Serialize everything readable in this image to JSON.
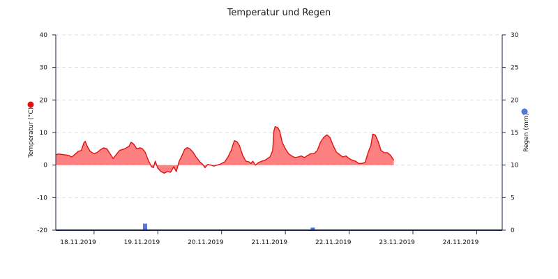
{
  "chart_data": {
    "type": "line",
    "title": "Temperatur und Regen",
    "colors": {
      "temperature_line": "#e01010",
      "temperature_fill": "#ff8080",
      "rain": "#5577dd",
      "grid": "#dddddd",
      "axis": "#1a2340"
    },
    "left_axis": {
      "label": "Temperatur (°C)",
      "ylim": [
        -20,
        40
      ],
      "ticks": [
        "-20",
        "-10",
        "0",
        "10",
        "20",
        "30",
        "40"
      ],
      "marker_color": "#e01010"
    },
    "right_axis": {
      "label": "Regen (mm)",
      "ylim": [
        0,
        30
      ],
      "ticks": [
        "0",
        "5",
        "10",
        "15",
        "20",
        "25",
        "30"
      ],
      "marker_color": "#5577dd"
    },
    "x_axis": {
      "range_days": [
        17.4,
        24.4
      ],
      "labels": [
        {
          "day": 17.75,
          "text": "18.11.2019"
        },
        {
          "day": 18.75,
          "text": "19.11.2019"
        },
        {
          "day": 19.75,
          "text": "20.11.2019"
        },
        {
          "day": 20.75,
          "text": "21.11.2019"
        },
        {
          "day": 21.75,
          "text": "22.11.2019"
        },
        {
          "day": 22.75,
          "text": "23.11.2019"
        },
        {
          "day": 23.75,
          "text": "24.11.2019"
        }
      ]
    },
    "grid": true,
    "series": [
      {
        "name": "Temperatur",
        "axis": "left",
        "points": [
          [
            17.4,
            3.2
          ],
          [
            17.45,
            3.4
          ],
          [
            17.52,
            3.2
          ],
          [
            17.6,
            3.0
          ],
          [
            17.65,
            2.5
          ],
          [
            17.7,
            3.3
          ],
          [
            17.75,
            4.2
          ],
          [
            17.8,
            4.5
          ],
          [
            17.84,
            6.8
          ],
          [
            17.86,
            7.3
          ],
          [
            17.9,
            5.5
          ],
          [
            17.94,
            4.2
          ],
          [
            18.0,
            3.5
          ],
          [
            18.05,
            3.9
          ],
          [
            18.1,
            4.7
          ],
          [
            18.15,
            5.3
          ],
          [
            18.2,
            5.0
          ],
          [
            18.25,
            3.5
          ],
          [
            18.3,
            2.0
          ],
          [
            18.35,
            3.3
          ],
          [
            18.4,
            4.5
          ],
          [
            18.48,
            5.0
          ],
          [
            18.55,
            5.8
          ],
          [
            18.58,
            7.0
          ],
          [
            18.62,
            6.5
          ],
          [
            18.67,
            5.0
          ],
          [
            18.72,
            5.3
          ],
          [
            18.76,
            5.0
          ],
          [
            18.8,
            4.0
          ],
          [
            18.85,
            1.5
          ],
          [
            18.9,
            -0.5
          ],
          [
            18.93,
            -0.8
          ],
          [
            18.96,
            1.2
          ],
          [
            19.0,
            -1.0
          ],
          [
            19.05,
            -2.0
          ],
          [
            19.1,
            -2.5
          ],
          [
            19.15,
            -2.0
          ],
          [
            19.2,
            -2.2
          ],
          [
            19.25,
            -0.5
          ],
          [
            19.29,
            -2.0
          ],
          [
            19.33,
            1.0
          ],
          [
            19.38,
            3.0
          ],
          [
            19.42,
            4.8
          ],
          [
            19.46,
            5.4
          ],
          [
            19.5,
            5.0
          ],
          [
            19.55,
            4.0
          ],
          [
            19.6,
            2.5
          ],
          [
            19.66,
            1.0
          ],
          [
            19.7,
            0.3
          ],
          [
            19.74,
            -0.8
          ],
          [
            19.78,
            0.2
          ],
          [
            19.83,
            0.0
          ],
          [
            19.88,
            -0.3
          ],
          [
            19.93,
            0.0
          ],
          [
            19.98,
            0.3
          ],
          [
            20.05,
            1.0
          ],
          [
            20.1,
            2.5
          ],
          [
            20.15,
            4.5
          ],
          [
            20.2,
            7.5
          ],
          [
            20.24,
            7.2
          ],
          [
            20.28,
            6.0
          ],
          [
            20.33,
            3.0
          ],
          [
            20.38,
            1.2
          ],
          [
            20.43,
            1.0
          ],
          [
            20.46,
            0.5
          ],
          [
            20.49,
            1.2
          ],
          [
            20.53,
            0.0
          ],
          [
            20.58,
            0.8
          ],
          [
            20.63,
            1.2
          ],
          [
            20.68,
            1.5
          ],
          [
            20.72,
            2.0
          ],
          [
            20.76,
            2.5
          ],
          [
            20.8,
            4.5
          ],
          [
            20.82,
            10.5
          ],
          [
            20.84,
            11.8
          ],
          [
            20.88,
            11.5
          ],
          [
            20.91,
            10.5
          ],
          [
            20.95,
            7.0
          ],
          [
            21.0,
            5.0
          ],
          [
            21.05,
            3.5
          ],
          [
            21.1,
            2.8
          ],
          [
            21.15,
            2.3
          ],
          [
            21.2,
            2.5
          ],
          [
            21.25,
            2.8
          ],
          [
            21.3,
            2.3
          ],
          [
            21.35,
            3.0
          ],
          [
            21.4,
            3.5
          ],
          [
            21.45,
            3.5
          ],
          [
            21.5,
            4.5
          ],
          [
            21.55,
            7.0
          ],
          [
            21.6,
            8.5
          ],
          [
            21.65,
            9.3
          ],
          [
            21.7,
            8.5
          ],
          [
            21.75,
            6.0
          ],
          [
            21.8,
            4.0
          ],
          [
            21.85,
            3.2
          ],
          [
            21.9,
            2.5
          ],
          [
            21.95,
            2.8
          ],
          [
            22.0,
            2.0
          ],
          [
            22.05,
            1.5
          ],
          [
            22.1,
            1.2
          ],
          [
            22.15,
            0.5
          ],
          [
            22.2,
            0.5
          ],
          [
            22.25,
            0.8
          ],
          [
            22.3,
            4.0
          ],
          [
            22.34,
            6.0
          ],
          [
            22.37,
            9.5
          ],
          [
            22.41,
            9.2
          ],
          [
            22.46,
            7.0
          ],
          [
            22.5,
            4.5
          ],
          [
            22.55,
            3.8
          ],
          [
            22.6,
            3.8
          ],
          [
            22.65,
            3.0
          ],
          [
            22.7,
            1.5
          ]
        ]
      },
      {
        "name": "Regen",
        "axis": "right",
        "bars": [
          {
            "day": 18.8,
            "value": 1.0
          },
          {
            "day": 21.43,
            "value": 0.4
          }
        ]
      }
    ]
  }
}
